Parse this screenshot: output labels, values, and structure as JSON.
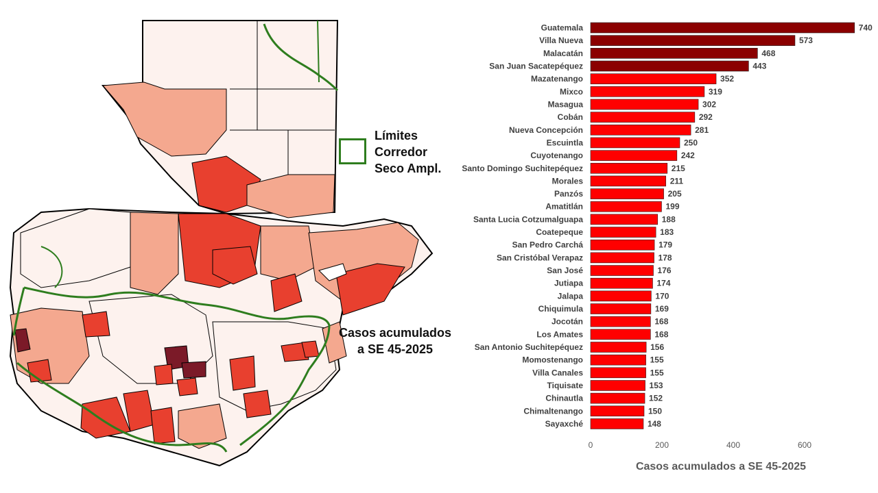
{
  "legend": {
    "line1": "Límites",
    "line2": "Corredor",
    "line3": "Seco Ampl.",
    "border_color": "#2e7d1e"
  },
  "map": {
    "caption_line1": "Casos acumulados",
    "caption_line2": "a SE 45-2025",
    "colors": {
      "none": "#fdf2ee",
      "low": "#f4a88f",
      "mid": "#e8402f",
      "high": "#7b1a28",
      "outline": "#000000",
      "corridor": "#2e7d1e"
    }
  },
  "chart_data": {
    "type": "bar",
    "orientation": "horizontal",
    "categories": [
      "Guatemala",
      "Villa Nueva",
      "Malacatán",
      "San Juan Sacatepéquez",
      "Mazatenango",
      "Mixco",
      "Masagua",
      "Cobán",
      "Nueva Concepción",
      "Escuintla",
      "Cuyotenango",
      "Santo Domingo Suchitepéquez",
      "Morales",
      "Panzós",
      "Amatitlán",
      "Santa Lucia Cotzumalguapa",
      "Coatepeque",
      "San Pedro Carchá",
      "San Cristóbal Verapaz",
      "San José",
      "Jutiapa",
      "Jalapa",
      "Chiquimula",
      "Jocotán",
      "Los Amates",
      "San Antonio Suchitepéquez",
      "Momostenango",
      "Villa Canales",
      "Tiquisate",
      "Chinautla",
      "Chimaltenango",
      "Sayaxché"
    ],
    "values": [
      740,
      573,
      468,
      443,
      352,
      319,
      302,
      292,
      281,
      250,
      242,
      215,
      211,
      205,
      199,
      188,
      183,
      179,
      178,
      176,
      174,
      170,
      169,
      168,
      168,
      156,
      155,
      155,
      153,
      152,
      150,
      148
    ],
    "highlight_count": 4,
    "colors": {
      "top": "#8b0000",
      "rest": "#ff0000",
      "label": "#404040"
    },
    "xlim": [
      0,
      750
    ],
    "xticks": [
      "0",
      "200",
      "400",
      "600"
    ],
    "xtick_values": [
      0,
      200,
      400,
      600
    ],
    "xlabel": "Casos acumulados a SE 45-2025",
    "grid": false
  }
}
